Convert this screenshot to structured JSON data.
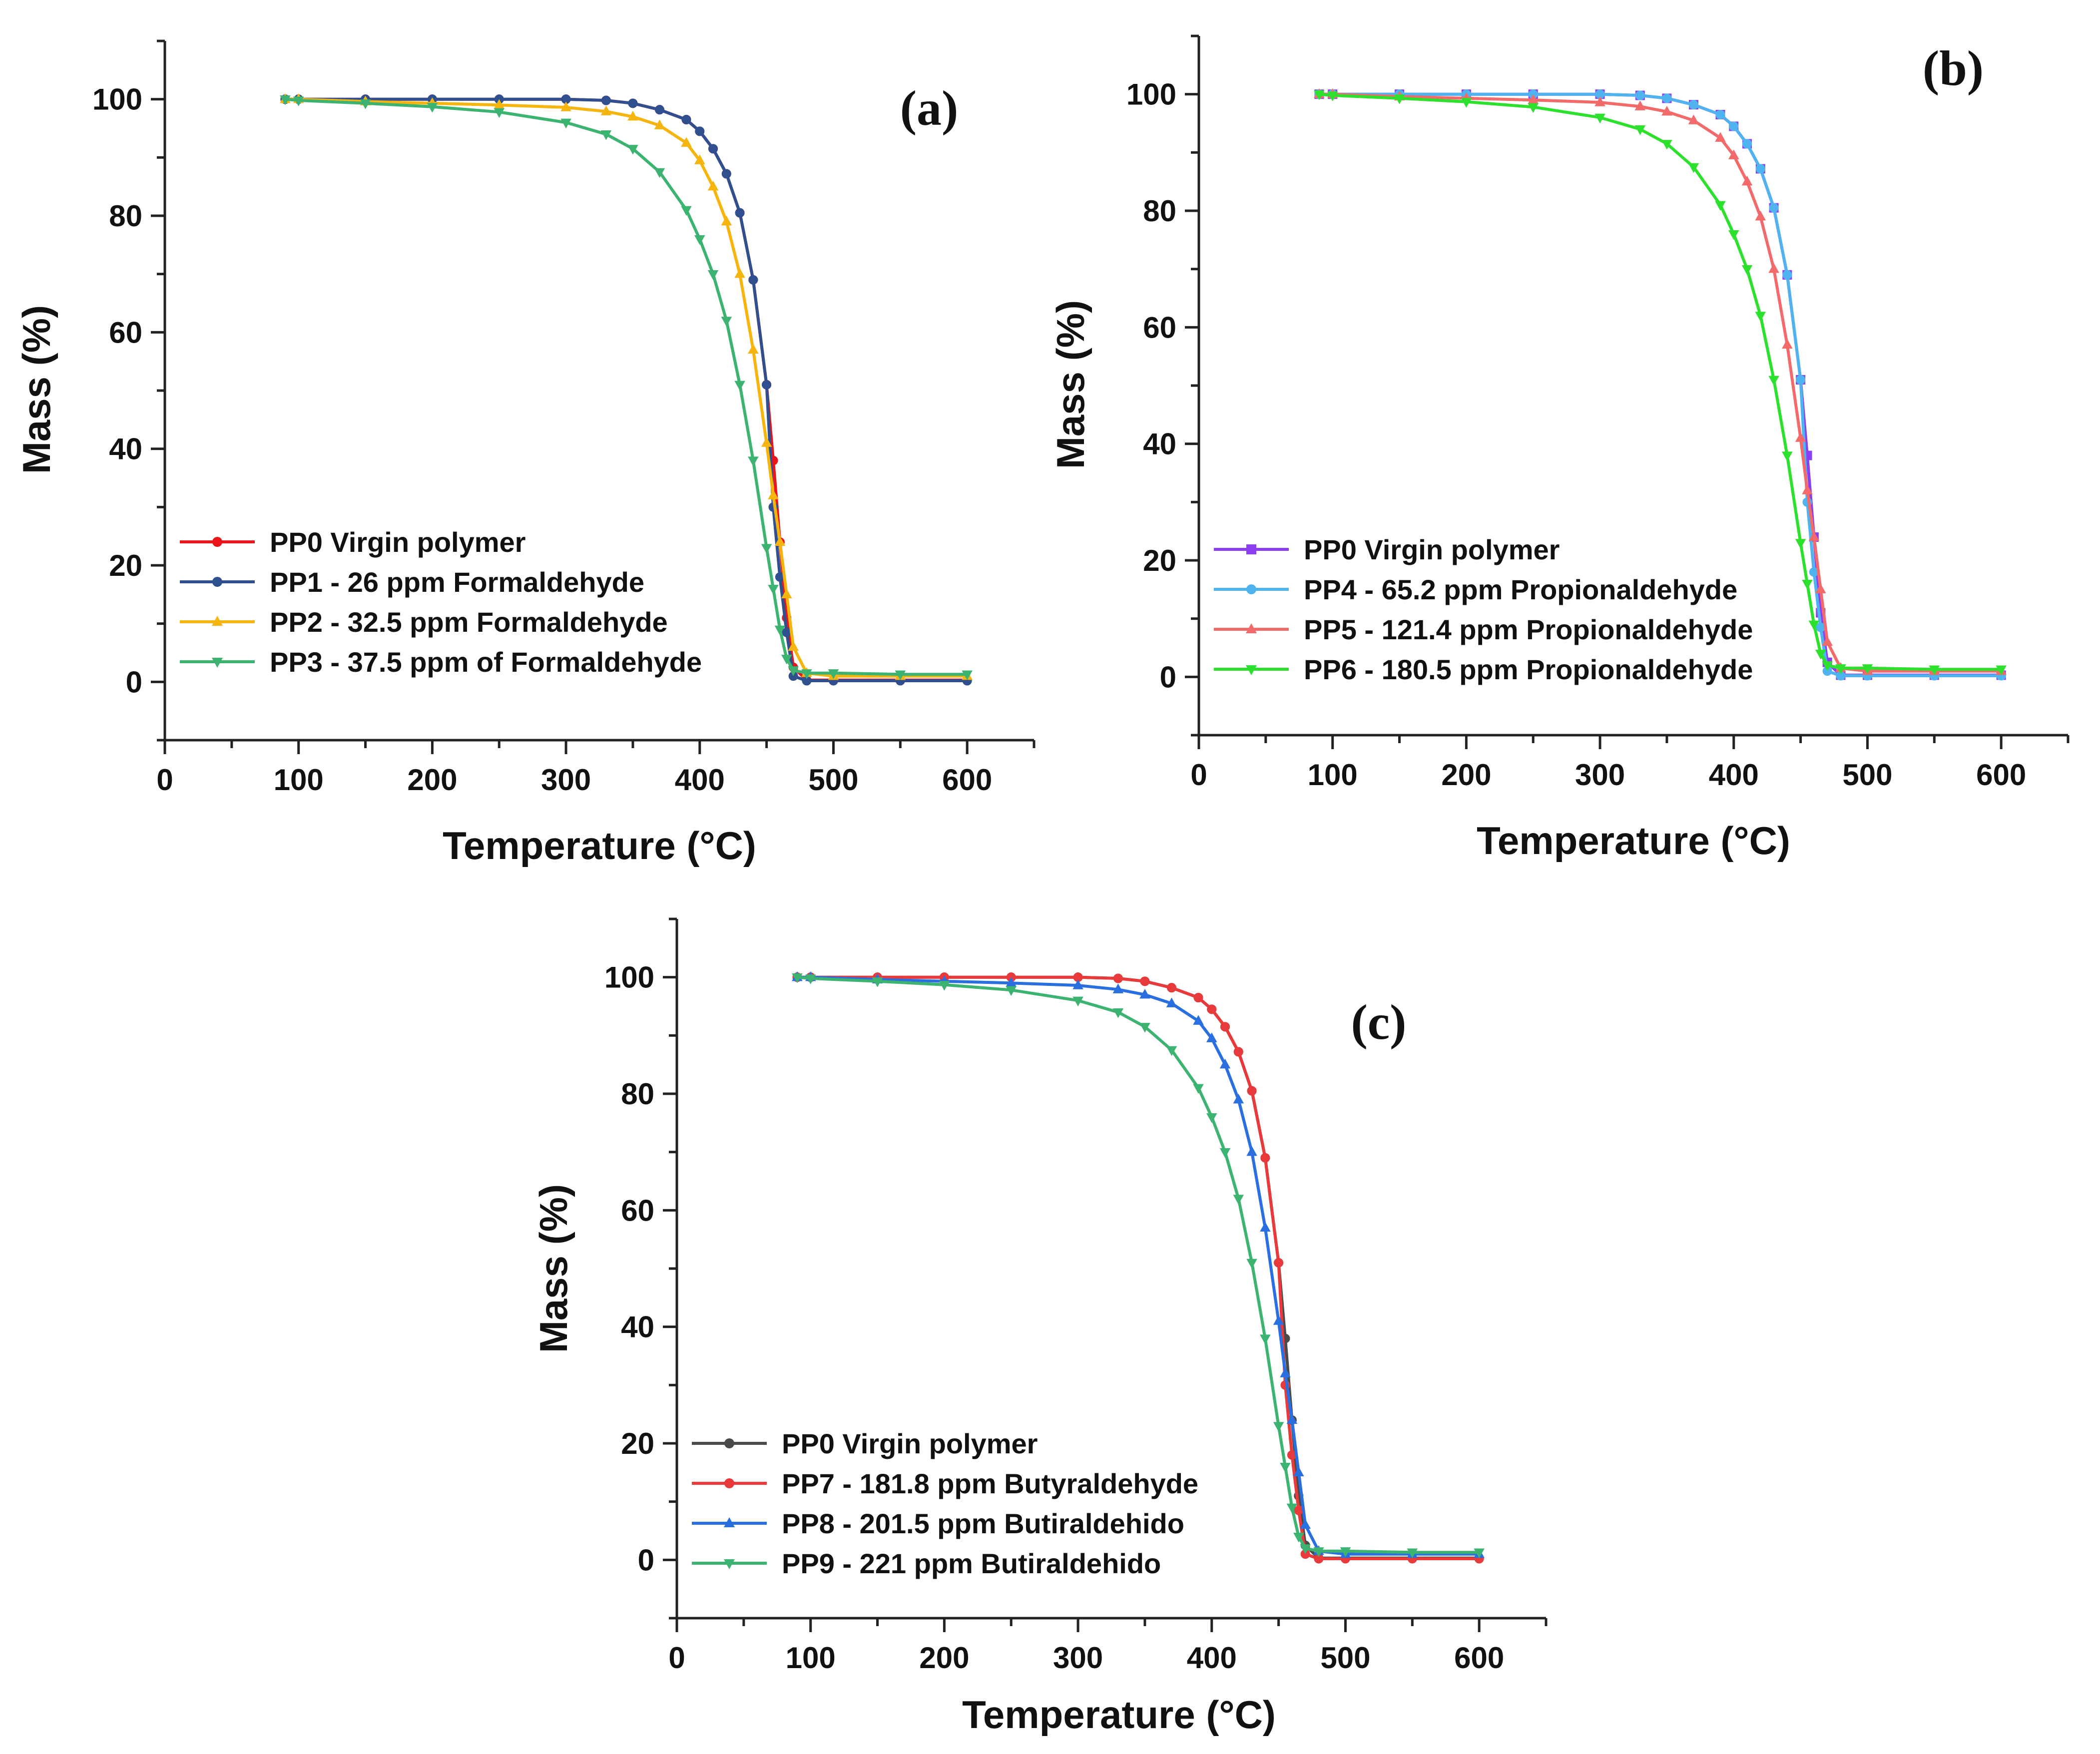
{
  "chart_data": [
    {
      "panel": "(a)",
      "type": "line",
      "xlabel": "Temperature (°C)",
      "ylabel": "Mass (%)",
      "xlim": [
        0,
        650
      ],
      "ylim": [
        -10,
        110
      ],
      "xticks": [
        0,
        100,
        200,
        300,
        400,
        500,
        600
      ],
      "yticks": [
        0,
        20,
        40,
        60,
        80,
        100
      ],
      "legend_position": "lower-left",
      "series": [
        {
          "name": "PP0 Virgin polymer",
          "color": "#e8151b",
          "marker": "circle",
          "x": [
            90,
            100,
            150,
            200,
            250,
            300,
            330,
            350,
            370,
            390,
            400,
            410,
            420,
            430,
            440,
            450,
            455,
            460,
            465,
            470,
            480,
            500,
            550,
            600
          ],
          "y": [
            100,
            100,
            100,
            100,
            100,
            100,
            99.8,
            99.3,
            98.2,
            96.5,
            94.5,
            91.5,
            87.2,
            80.5,
            69,
            51,
            38,
            24,
            11,
            2.5,
            0.3,
            0.3,
            0.3,
            0.3
          ]
        },
        {
          "name": "PP1 - 26 ppm Formaldehyde",
          "color": "#2f4f8f",
          "marker": "circle",
          "x": [
            90,
            100,
            150,
            200,
            250,
            300,
            330,
            350,
            370,
            390,
            400,
            410,
            420,
            430,
            440,
            450,
            455,
            460,
            465,
            470,
            480,
            500,
            550,
            600
          ],
          "y": [
            100,
            100,
            100,
            100,
            100,
            100,
            99.8,
            99.3,
            98.2,
            96.5,
            94.5,
            91.5,
            87.2,
            80.5,
            69,
            51,
            30,
            18,
            8.5,
            1,
            0.2,
            0.2,
            0.2,
            0.2
          ]
        },
        {
          "name": "PP2 - 32.5 ppm Formaldehyde",
          "color": "#f6b40e",
          "marker": "triangle-up",
          "x": [
            90,
            100,
            150,
            200,
            250,
            300,
            330,
            350,
            370,
            390,
            400,
            410,
            420,
            430,
            440,
            450,
            455,
            460,
            465,
            470,
            480,
            500,
            550,
            600
          ],
          "y": [
            100,
            100,
            99.6,
            99.3,
            99,
            98.6,
            97.9,
            97,
            95.5,
            92.5,
            89.5,
            85,
            79,
            70,
            57,
            41,
            32,
            24,
            15,
            6,
            1.5,
            1,
            1,
            1
          ]
        },
        {
          "name": "PP3 - 37.5 ppm of Formaldehyde",
          "color": "#3cb371",
          "marker": "triangle-down",
          "x": [
            90,
            100,
            150,
            200,
            250,
            300,
            330,
            350,
            370,
            390,
            400,
            410,
            420,
            430,
            440,
            450,
            455,
            460,
            465,
            470,
            480,
            500,
            550,
            600
          ],
          "y": [
            100,
            99.8,
            99.3,
            98.7,
            97.8,
            96,
            94,
            91.5,
            87.5,
            81,
            76,
            70,
            62,
            51,
            38,
            23,
            16,
            9,
            4,
            2,
            1.5,
            1.5,
            1.3,
            1.3
          ]
        }
      ]
    },
    {
      "panel": "(b)",
      "type": "line",
      "xlabel": "Temperature (°C)",
      "ylabel": "Mass (%)",
      "xlim": [
        0,
        650
      ],
      "ylim": [
        -10,
        110
      ],
      "xticks": [
        0,
        100,
        200,
        300,
        400,
        500,
        600
      ],
      "yticks": [
        0,
        20,
        40,
        60,
        80,
        100
      ],
      "legend_position": "lower-left",
      "series": [
        {
          "name": "PP0 Virgin polymer",
          "color": "#8a3ff0",
          "marker": "square",
          "x": [
            90,
            100,
            150,
            200,
            250,
            300,
            330,
            350,
            370,
            390,
            400,
            410,
            420,
            430,
            440,
            450,
            455,
            460,
            465,
            470,
            480,
            500,
            550,
            600
          ],
          "y": [
            100,
            100,
            100,
            100,
            100,
            100,
            99.8,
            99.3,
            98.2,
            96.5,
            94.5,
            91.5,
            87.2,
            80.5,
            69,
            51,
            38,
            24,
            11,
            2.5,
            0.3,
            0.3,
            0.3,
            0.3
          ]
        },
        {
          "name": "PP4 - 65.2 ppm Propionaldehyde",
          "color": "#4fb3f0",
          "marker": "circle",
          "x": [
            90,
            100,
            150,
            200,
            250,
            300,
            330,
            350,
            370,
            390,
            400,
            410,
            420,
            430,
            440,
            450,
            455,
            460,
            465,
            470,
            480,
            500,
            550,
            600
          ],
          "y": [
            100,
            100,
            100,
            100,
            100,
            100,
            99.8,
            99.3,
            98.2,
            96.5,
            94.5,
            91.5,
            87.2,
            80.5,
            69,
            51,
            30,
            18,
            8.5,
            1,
            0.2,
            0.2,
            0.2,
            0.2
          ]
        },
        {
          "name": "PP5 - 121.4 ppm Propionaldehyde",
          "color": "#f26a6a",
          "marker": "triangle-up",
          "x": [
            90,
            100,
            150,
            200,
            250,
            300,
            330,
            350,
            370,
            390,
            400,
            410,
            420,
            430,
            440,
            450,
            455,
            460,
            465,
            470,
            480,
            500,
            550,
            600
          ],
          "y": [
            100,
            100,
            99.6,
            99.3,
            99,
            98.6,
            97.9,
            97,
            95.5,
            92.5,
            89.5,
            85,
            79,
            70,
            57,
            41,
            32,
            24,
            15,
            6,
            1.5,
            1,
            1,
            1
          ]
        },
        {
          "name": "PP6 - 180.5 ppm Propionaldehyde",
          "color": "#2ee02e",
          "marker": "triangle-down",
          "x": [
            90,
            100,
            150,
            200,
            250,
            300,
            330,
            350,
            370,
            390,
            400,
            410,
            420,
            430,
            440,
            450,
            455,
            460,
            465,
            470,
            480,
            500,
            550,
            600
          ],
          "y": [
            100,
            99.8,
            99.3,
            98.7,
            97.8,
            96,
            94,
            91.5,
            87.5,
            81,
            76,
            70,
            62,
            51,
            38,
            23,
            16,
            9,
            4,
            2,
            1.5,
            1.5,
            1.3,
            1.3
          ]
        }
      ]
    },
    {
      "panel": "(c)",
      "type": "line",
      "xlabel": "Temperature (°C)",
      "ylabel": "Mass (%)",
      "xlim": [
        0,
        650
      ],
      "ylim": [
        -10,
        110
      ],
      "xticks": [
        0,
        100,
        200,
        300,
        400,
        500,
        600
      ],
      "yticks": [
        0,
        20,
        40,
        60,
        80,
        100
      ],
      "legend_position": "lower-left",
      "series": [
        {
          "name": "PP0 Virgin polymer",
          "color": "#4a4a4a",
          "marker": "circle",
          "x": [
            90,
            100,
            150,
            200,
            250,
            300,
            330,
            350,
            370,
            390,
            400,
            410,
            420,
            430,
            440,
            450,
            455,
            460,
            465,
            470,
            480,
            500,
            550,
            600
          ],
          "y": [
            100,
            100,
            100,
            100,
            100,
            100,
            99.8,
            99.3,
            98.2,
            96.5,
            94.5,
            91.5,
            87.2,
            80.5,
            69,
            51,
            38,
            24,
            11,
            2.5,
            0.3,
            0.3,
            0.3,
            0.3
          ]
        },
        {
          "name": "PP7 - 181.8 ppm Butyraldehyde",
          "color": "#e83a3a",
          "marker": "circle",
          "x": [
            90,
            100,
            150,
            200,
            250,
            300,
            330,
            350,
            370,
            390,
            400,
            410,
            420,
            430,
            440,
            450,
            455,
            460,
            465,
            470,
            480,
            500,
            550,
            600
          ],
          "y": [
            100,
            100,
            100,
            100,
            100,
            100,
            99.8,
            99.3,
            98.2,
            96.5,
            94.5,
            91.5,
            87.2,
            80.5,
            69,
            51,
            30,
            18,
            8.5,
            1,
            0.2,
            0.2,
            0.2,
            0.2
          ]
        },
        {
          "name": "PP8 - 201.5 ppm Butiraldehido",
          "color": "#2a6fe0",
          "marker": "triangle-up",
          "x": [
            90,
            100,
            150,
            200,
            250,
            300,
            330,
            350,
            370,
            390,
            400,
            410,
            420,
            430,
            440,
            450,
            455,
            460,
            465,
            470,
            480,
            500,
            550,
            600
          ],
          "y": [
            100,
            100,
            99.6,
            99.3,
            99,
            98.6,
            97.9,
            97,
            95.5,
            92.5,
            89.5,
            85,
            79,
            70,
            57,
            41,
            32,
            24,
            15,
            6,
            1.5,
            1,
            1,
            1
          ]
        },
        {
          "name": "PP9 - 221 ppm Butiraldehido",
          "color": "#3cb371",
          "marker": "triangle-down",
          "x": [
            90,
            100,
            150,
            200,
            250,
            300,
            330,
            350,
            370,
            390,
            400,
            410,
            420,
            430,
            440,
            450,
            455,
            460,
            465,
            470,
            480,
            500,
            550,
            600
          ],
          "y": [
            100,
            99.8,
            99.3,
            98.7,
            97.8,
            96,
            94,
            91.5,
            87.5,
            81,
            76,
            70,
            62,
            51,
            38,
            23,
            16,
            9,
            4,
            2,
            1.5,
            1.5,
            1.3,
            1.3
          ]
        }
      ]
    }
  ]
}
